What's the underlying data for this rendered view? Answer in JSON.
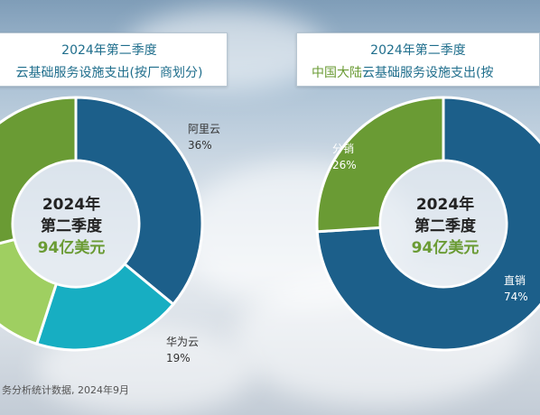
{
  "source_text": "务分析统计数据, 2024年9月",
  "chart_data": [
    {
      "type": "pie",
      "style": "donut",
      "title": "2024年第二季度",
      "subtitle": "云基础服务设施支出(按厂商划分)",
      "center": {
        "line1": "2024年",
        "line2": "第二季度",
        "line3": "94亿美元"
      },
      "slices": [
        {
          "label": "阿里云",
          "value_text": "36%",
          "value": 36,
          "color": "#1c5f8a"
        },
        {
          "label": "华为云",
          "value_text": "19%",
          "value": 19,
          "color": "#17aec2"
        },
        {
          "label": "",
          "value_text": "",
          "value": 16,
          "color": "#9fcf61"
        },
        {
          "label": "",
          "value_text": "",
          "value": 29,
          "color": "#6a9b34"
        }
      ]
    },
    {
      "type": "pie",
      "style": "donut",
      "title": "2024年第二季度",
      "subtitle_highlight": "中国大陆",
      "subtitle": "云基础服务设施支出(按",
      "center": {
        "line1": "2024年",
        "line2": "第二季度",
        "line3": "94亿美元"
      },
      "slices": [
        {
          "label": "直销",
          "value_text": "74%",
          "value": 74,
          "color": "#1c5f8a"
        },
        {
          "label": "分销",
          "value_text": "26%",
          "value": 26,
          "color": "#6a9b34"
        }
      ]
    }
  ]
}
